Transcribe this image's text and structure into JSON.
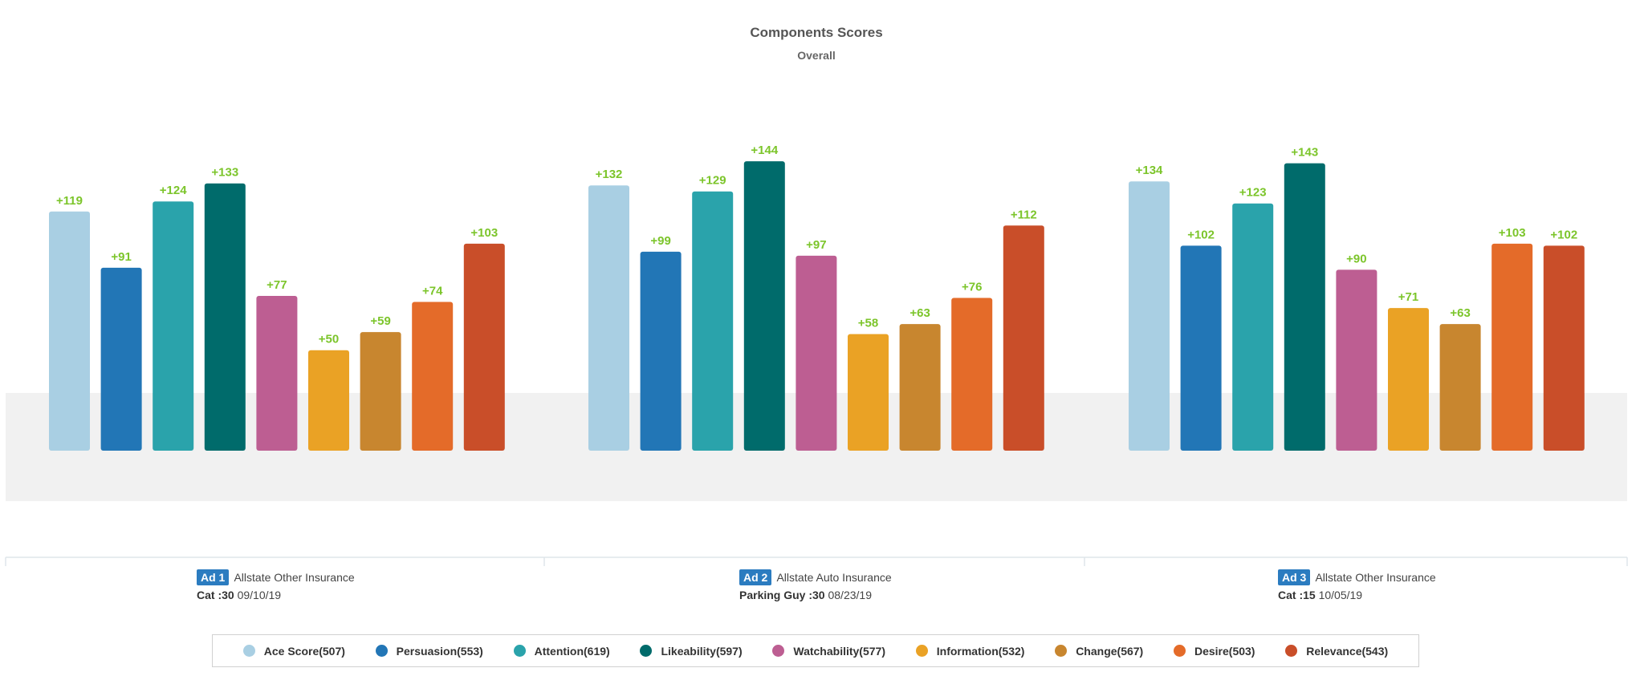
{
  "chart_data": {
    "type": "bar",
    "title": "Components Scores",
    "subtitle": "Overall",
    "categories": [
      "Ace Score",
      "Persuasion",
      "Attention",
      "Likeability",
      "Watchability",
      "Information",
      "Change",
      "Desire",
      "Relevance"
    ],
    "colors": [
      "#a9cfe3",
      "#2276b6",
      "#2aa3ab",
      "#006b6b",
      "#bd5e92",
      "#eaa225",
      "#c8862f",
      "#e46b29",
      "#c94e29"
    ],
    "ylim": [
      0,
      160
    ],
    "groups": [
      {
        "ad_label": "Ad 1",
        "ad_name": "Allstate Other Insurance",
        "spot": "Cat :30",
        "date": "09/10/19",
        "values": [
          119,
          91,
          124,
          133,
          77,
          50,
          59,
          74,
          103
        ],
        "labels": [
          "+119",
          "+91",
          "+124",
          "+133",
          "+77",
          "+50",
          "+59",
          "+74",
          "+103"
        ]
      },
      {
        "ad_label": "Ad 2",
        "ad_name": "Allstate Auto Insurance",
        "spot": "Parking Guy :30",
        "date": "08/23/19",
        "values": [
          132,
          99,
          129,
          144,
          97,
          58,
          63,
          76,
          112
        ],
        "labels": [
          "+132",
          "+99",
          "+129",
          "+144",
          "+97",
          "+58",
          "+63",
          "+76",
          "+112"
        ]
      },
      {
        "ad_label": "Ad 3",
        "ad_name": "Allstate Other Insurance",
        "spot": "Cat :15",
        "date": "10/05/19",
        "values": [
          134,
          102,
          123,
          143,
          90,
          71,
          63,
          103,
          102
        ],
        "labels": [
          "+134",
          "+102",
          "+123",
          "+143",
          "+90",
          "+71",
          "+63",
          "+103",
          "+102"
        ]
      }
    ],
    "legend": [
      {
        "label": "Ace Score(507)",
        "color": "#a9cfe3"
      },
      {
        "label": "Persuasion(553)",
        "color": "#2276b6"
      },
      {
        "label": "Attention(619)",
        "color": "#2aa3ab"
      },
      {
        "label": "Likeability(597)",
        "color": "#006b6b"
      },
      {
        "label": "Watchability(577)",
        "color": "#bd5e92"
      },
      {
        "label": "Information(532)",
        "color": "#eaa225"
      },
      {
        "label": "Change(567)",
        "color": "#c8862f"
      },
      {
        "label": "Desire(503)",
        "color": "#e46b29"
      },
      {
        "label": "Relevance(543)",
        "color": "#c94e29"
      }
    ],
    "legend_position": "bottom",
    "grid": false
  }
}
